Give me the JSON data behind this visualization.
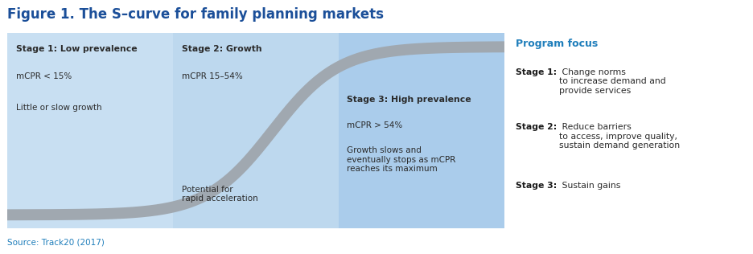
{
  "title": "Figure 1. The S–curve for family planning markets",
  "title_color": "#1B4F99",
  "title_fontsize": 12,
  "source_text": "Source: Track20 (2017)",
  "source_color": "#1F7EBB",
  "background_color": "#ffffff",
  "stage_bg": "#C5DFF0",
  "stage2_bg": "#B8D8EE",
  "stage3_bg": "#A8CFEC",
  "curve_color": "#A0A8B0",
  "curve_linewidth": 10,
  "stage1_header": "Stage 1: Low prevalence",
  "stage1_line1": "mCPR < 15%",
  "stage1_line2": "Little or slow growth",
  "stage2_header": "Stage 2: Growth",
  "stage2_line1": "mCPR 15–54%",
  "stage2_annotation": "Potential for\nrapid acceleration",
  "stage3_header": "Stage 3: High prevalence",
  "stage3_line1": "mCPR > 54%",
  "stage3_line2": "Growth slows and\neventually stops as mCPR\nreaches its maximum",
  "program_focus_header": "Program focus",
  "program_focus_header_color": "#1F7EBB",
  "header_color": "#2A2A2A",
  "text_color": "#2A2A2A",
  "bold_color": "#2A2A2A",
  "pf_bold_color": "#1A1A1A",
  "pf_text_color": "#2A2A2A"
}
